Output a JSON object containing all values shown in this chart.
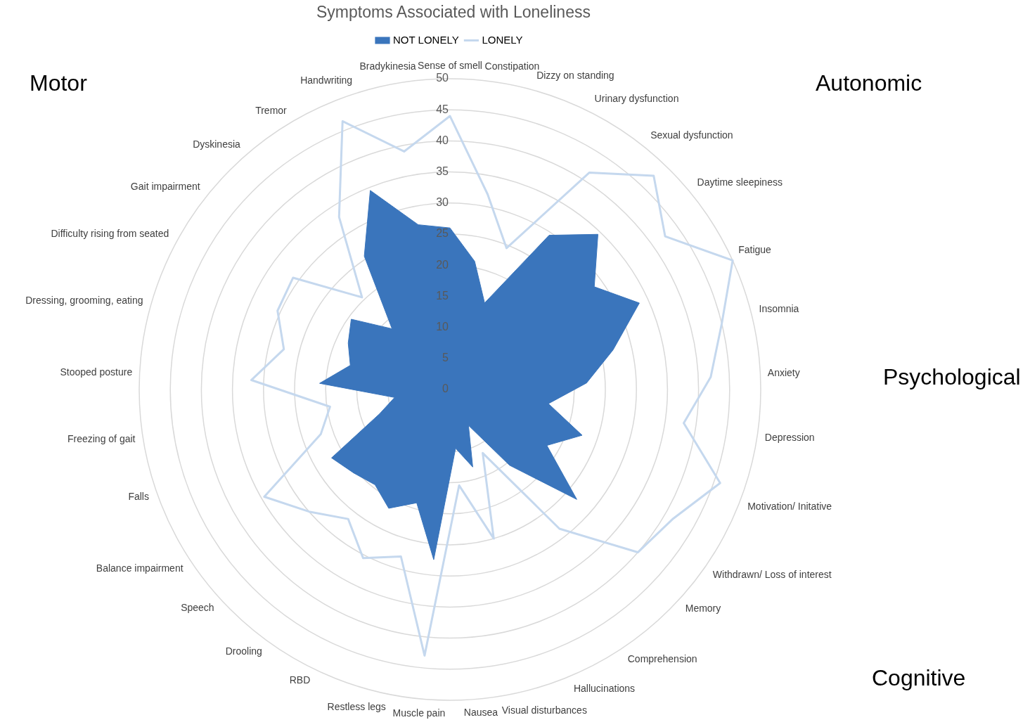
{
  "chart_data": {
    "type": "radar",
    "title": "Symptoms Associated with Loneliness",
    "categories": [
      "Sense of smell",
      "Constipation",
      "Dizzy on standing",
      "Urinary dysfunction",
      "Sexual dysfunction",
      "Daytime sleepiness",
      "Fatigue",
      "Insomnia",
      "Anxiety",
      "Depression",
      "Motivation/ Initative",
      "Withdrawn/ Loss of interest",
      "Memory",
      "Comprehension",
      "Hallucinations",
      "Visual disturbances",
      "Nausea",
      "Muscle pain",
      "Restless legs",
      "RBD",
      "Drooling",
      "Speech",
      "Balance impairment",
      "Falls",
      "Freezing of gait",
      "Stooped posture",
      "Dressing, grooming, eating",
      "Difficulty rising from seated",
      "Gait impairment",
      "Dyskinesia",
      "Tremor",
      "Handwriting",
      "Bradykinesia"
    ],
    "series": [
      {
        "name": "NOT LONELY",
        "color": "#3a75bc",
        "values": [
          26,
          21,
          15,
          29.5,
          34.5,
          28.5,
          33.5,
          27,
          22,
          16,
          22.5,
          18,
          27,
          15.5,
          6.5,
          13,
          9.5,
          27.5,
          19,
          21.5,
          19.5,
          20.5,
          22,
          12,
          9,
          21,
          16.5,
          18,
          19.5,
          13.5,
          25.5,
          34.5,
          27
        ]
      },
      {
        "name": "LONELY",
        "color": "#c5d8ee",
        "values": [
          44,
          32,
          24.5,
          41.5,
          47.5,
          42.5,
          50,
          45,
          42,
          38,
          46,
          41.5,
          40,
          28.5,
          11.5,
          25,
          15.5,
          43,
          28,
          30.5,
          26.5,
          30,
          34.5,
          22,
          19.5,
          32,
          27.5,
          30.5,
          31,
          20.5,
          33,
          46.5,
          39
        ]
      }
    ],
    "ylim": [
      0,
      50
    ],
    "yticks": [
      0,
      5,
      10,
      15,
      20,
      25,
      30,
      35,
      40,
      45,
      50
    ],
    "grid": true,
    "legend": "top",
    "marker": "none",
    "annotations": [
      "Motor",
      "Autonomic",
      "Psychological",
      "Cognitive"
    ]
  }
}
